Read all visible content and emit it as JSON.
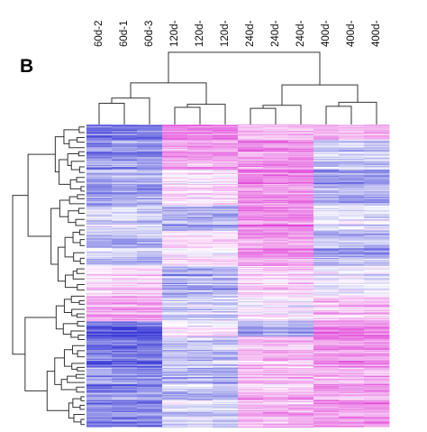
{
  "panel": {
    "letter": "B"
  },
  "chart_data": {
    "type": "heatmap",
    "title": "",
    "xlabel": "",
    "ylabel": "",
    "columns": [
      "60d-2",
      "60d-1",
      "60d-3",
      "120d-",
      "120d-",
      "120d-",
      "240d-",
      "240d-",
      "240d-",
      "400d-",
      "400d-",
      "400d-"
    ],
    "color_scale": {
      "low": "#3a3ad6",
      "mid": "#ffffff",
      "high": "#e040d8"
    },
    "value_range": [
      -1,
      1
    ],
    "row_count": 300,
    "column_groups": [
      {
        "name": "60d",
        "columns": [
          0,
          1,
          2
        ]
      },
      {
        "name": "120d",
        "columns": [
          3,
          4,
          5
        ]
      },
      {
        "name": "240d",
        "columns": [
          6,
          7,
          8
        ]
      },
      {
        "name": "400d",
        "columns": [
          9,
          10,
          11
        ]
      }
    ],
    "row_segments": [
      {
        "rows": [
          0,
          15
        ],
        "levels": [
          -0.7,
          0.65,
          0.35,
          0.4
        ]
      },
      {
        "rows": [
          15,
          45
        ],
        "levels": [
          -0.55,
          0.5,
          0.55,
          -0.25
        ]
      },
      {
        "rows": [
          45,
          80
        ],
        "levels": [
          -0.45,
          0.15,
          0.6,
          -0.45
        ]
      },
      {
        "rows": [
          80,
          105
        ],
        "levels": [
          -0.15,
          -0.45,
          0.65,
          -0.15
        ]
      },
      {
        "rows": [
          105,
          140
        ],
        "levels": [
          -0.35,
          0.15,
          0.5,
          -0.35
        ]
      },
      {
        "rows": [
          140,
          170
        ],
        "levels": [
          0.2,
          -0.4,
          0.25,
          -0.1
        ]
      },
      {
        "rows": [
          170,
          195
        ],
        "levels": [
          0.45,
          -0.25,
          0.05,
          0.3
        ]
      },
      {
        "rows": [
          195,
          210
        ],
        "levels": [
          -0.85,
          0.05,
          -0.45,
          0.65
        ]
      },
      {
        "rows": [
          210,
          240
        ],
        "levels": [
          -0.7,
          -0.3,
          0.35,
          0.55
        ]
      },
      {
        "rows": [
          240,
          270
        ],
        "levels": [
          -0.55,
          -0.35,
          0.3,
          0.45
        ]
      },
      {
        "rows": [
          270,
          300
        ],
        "levels": [
          -0.6,
          -0.2,
          0.4,
          0.55
        ]
      }
    ],
    "column_dendrogram": [
      {
        "left": 0,
        "right": 1,
        "height": 0.12
      },
      {
        "left": 12,
        "right": 2,
        "height": 0.17
      },
      {
        "left": 3,
        "right": 4,
        "height": 0.08
      },
      {
        "left": 14,
        "right": 5,
        "height": 0.11
      },
      {
        "left": 13,
        "right": 15,
        "height": 0.32
      },
      {
        "left": 6,
        "right": 7,
        "height": 0.07
      },
      {
        "left": 17,
        "right": 8,
        "height": 0.1
      },
      {
        "left": 9,
        "right": 10,
        "height": 0.09
      },
      {
        "left": 19,
        "right": 11,
        "height": 0.13
      },
      {
        "left": 18,
        "right": 20,
        "height": 0.3
      },
      {
        "left": 16,
        "right": 21,
        "height": 0.62
      }
    ]
  }
}
